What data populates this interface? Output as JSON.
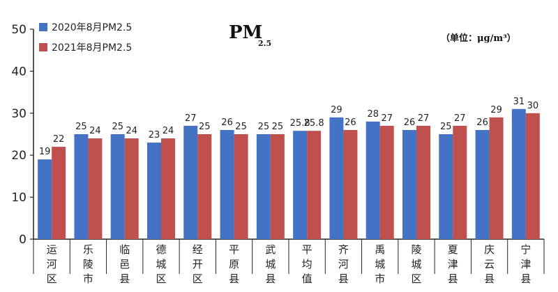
{
  "chart_data": {
    "type": "bar",
    "title": "PM",
    "title_subscript": "2.5",
    "unit_label": "（单位：μg/m³）",
    "categories": [
      "运河区",
      "乐陵市",
      "临邑县",
      "德城区",
      "经开区",
      "平原县",
      "武城县",
      "平均值",
      "齐河县",
      "禹城市",
      "陵城区",
      "夏津县",
      "庆云县",
      "宁津县"
    ],
    "series": [
      {
        "name": "2020年8月PM2.5",
        "color": "#4472C4",
        "values": [
          19,
          25,
          25,
          23,
          27,
          26,
          25,
          25.8,
          29,
          28,
          26,
          25,
          26,
          31
        ]
      },
      {
        "name": "2021年8月PM2.5",
        "color": "#C0504D",
        "values": [
          22,
          24,
          24,
          24,
          25,
          25,
          25,
          25.8,
          26,
          27,
          27,
          27,
          29,
          30
        ]
      }
    ],
    "ylim": [
      0,
      50
    ],
    "yticks": [
      0,
      10,
      20,
      30,
      40,
      50
    ],
    "grid": false,
    "legend_position": "top-left",
    "xlabel": "",
    "ylabel": ""
  }
}
